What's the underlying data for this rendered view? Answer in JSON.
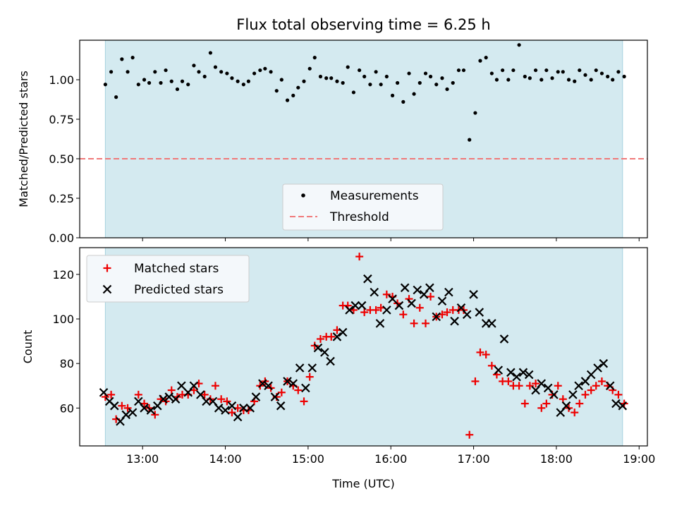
{
  "colors": {
    "span": "#d4eaf0",
    "span_edge": "#a7d1df",
    "threshold": "#f07a7a",
    "matched": "#ee0000",
    "predicted": "#000000",
    "measure": "#000000",
    "legend_bg": "#f4f8fb"
  },
  "chart_data": [
    {
      "type": "scatter",
      "title": "Flux total observing time = 6.25 h",
      "xlabel": "",
      "ylabel": "Matched/Predicted stars",
      "xlim": [
        12.24,
        19.1
      ],
      "ylim": [
        0.0,
        1.25
      ],
      "yticks": [
        0.0,
        0.25,
        0.5,
        0.75,
        1.0
      ],
      "ytick_labels": [
        "0.00",
        "0.25",
        "0.50",
        "0.75",
        "1.00"
      ],
      "xticks": [
        13,
        14,
        15,
        16,
        17,
        18,
        19
      ],
      "shaded_span": [
        12.55,
        18.8
      ],
      "threshold": 0.5,
      "legend": [
        "Measurements",
        "Threshold"
      ],
      "series": [
        {
          "name": "Measurements",
          "x": [
            12.55,
            12.62,
            12.68,
            12.75,
            12.82,
            12.88,
            12.95,
            13.02,
            13.08,
            13.15,
            13.22,
            13.28,
            13.35,
            13.42,
            13.48,
            13.55,
            13.62,
            13.68,
            13.75,
            13.82,
            13.88,
            13.95,
            14.02,
            14.08,
            14.15,
            14.22,
            14.28,
            14.35,
            14.42,
            14.48,
            14.55,
            14.62,
            14.68,
            14.75,
            14.82,
            14.88,
            14.95,
            15.02,
            15.08,
            15.15,
            15.22,
            15.28,
            15.35,
            15.42,
            15.48,
            15.55,
            15.62,
            15.68,
            15.75,
            15.82,
            15.88,
            15.95,
            16.02,
            16.08,
            16.15,
            16.22,
            16.28,
            16.35,
            16.42,
            16.48,
            16.55,
            16.62,
            16.68,
            16.75,
            16.82,
            16.88,
            16.95,
            17.02,
            17.08,
            17.15,
            17.22,
            17.28,
            17.35,
            17.42,
            17.48,
            17.55,
            17.62,
            17.68,
            17.75,
            17.82,
            17.88,
            17.95,
            18.02,
            18.08,
            18.15,
            18.22,
            18.28,
            18.35,
            18.42,
            18.48,
            18.55,
            18.62,
            18.68,
            18.75,
            18.82
          ],
          "y": [
            0.97,
            1.05,
            0.89,
            1.13,
            1.05,
            1.14,
            0.97,
            1.0,
            0.98,
            1.05,
            0.98,
            1.06,
            0.99,
            0.94,
            0.99,
            0.97,
            1.09,
            1.05,
            1.02,
            1.17,
            1.08,
            1.05,
            1.04,
            1.01,
            0.99,
            0.97,
            0.99,
            1.04,
            1.06,
            1.07,
            1.05,
            0.93,
            1.0,
            0.87,
            0.9,
            0.95,
            0.99,
            1.07,
            1.14,
            1.02,
            1.01,
            1.01,
            0.99,
            0.98,
            1.08,
            0.92,
            1.06,
            1.02,
            0.97,
            1.05,
            0.97,
            1.02,
            0.9,
            0.98,
            0.86,
            1.04,
            0.91,
            0.98,
            1.04,
            1.02,
            0.97,
            1.01,
            0.94,
            0.98,
            1.06,
            1.06,
            0.62,
            0.79,
            1.12,
            1.14,
            1.04,
            1.0,
            1.06,
            1.0,
            1.06,
            1.22,
            1.02,
            1.01,
            1.06,
            1.0,
            1.06,
            1.01,
            1.05,
            1.05,
            1.0,
            0.99,
            1.06,
            1.03,
            1.0,
            1.06,
            1.04,
            1.02,
            1.0,
            1.05,
            1.02
          ]
        }
      ]
    },
    {
      "type": "scatter",
      "title": "",
      "xlabel": "Time (UTC)",
      "ylabel": "Count",
      "xlim": [
        12.24,
        19.1
      ],
      "ylim": [
        43,
        132
      ],
      "yticks": [
        60,
        80,
        100,
        120
      ],
      "ytick_labels": [
        "60",
        "80",
        "100",
        "120"
      ],
      "xticks": [
        13,
        14,
        15,
        16,
        17,
        18,
        19
      ],
      "xtick_labels": [
        "13:00",
        "14:00",
        "15:00",
        "16:00",
        "17:00",
        "18:00",
        "19:00"
      ],
      "shaded_span": [
        12.55,
        18.8
      ],
      "legend": [
        "Matched stars",
        "Predicted stars"
      ],
      "series": [
        {
          "name": "Matched stars",
          "x": [
            12.55,
            12.62,
            12.68,
            12.75,
            12.82,
            12.95,
            13.02,
            13.08,
            13.15,
            13.22,
            13.28,
            13.35,
            13.42,
            13.48,
            13.55,
            13.62,
            13.68,
            13.75,
            13.82,
            13.88,
            13.95,
            14.02,
            14.08,
            14.15,
            14.22,
            14.28,
            14.35,
            14.42,
            14.48,
            14.55,
            14.62,
            14.68,
            14.75,
            14.82,
            14.88,
            14.95,
            15.02,
            15.08,
            15.15,
            15.22,
            15.28,
            15.35,
            15.42,
            15.48,
            15.55,
            15.62,
            15.68,
            15.75,
            15.82,
            15.88,
            15.95,
            16.02,
            16.08,
            16.15,
            16.22,
            16.28,
            16.35,
            16.42,
            16.48,
            16.55,
            16.62,
            16.68,
            16.75,
            16.82,
            16.88,
            16.95,
            17.02,
            17.08,
            17.15,
            17.22,
            17.28,
            17.35,
            17.42,
            17.48,
            17.55,
            17.62,
            17.68,
            17.75,
            17.82,
            17.88,
            17.95,
            18.02,
            18.08,
            18.15,
            18.22,
            18.28,
            18.35,
            18.42,
            18.48,
            18.55,
            18.62,
            18.68,
            18.75,
            18.82
          ],
          "y": [
            65,
            66,
            55,
            61,
            60,
            66,
            62,
            60,
            57,
            64,
            63,
            68,
            65,
            66,
            66,
            68,
            71,
            66,
            64,
            70,
            64,
            63,
            58,
            60,
            59,
            59,
            63,
            70,
            72,
            69,
            65,
            67,
            72,
            70,
            68,
            63,
            74,
            88,
            91,
            92,
            92,
            95,
            106,
            106,
            104,
            128,
            103,
            104,
            104,
            105,
            111,
            110,
            107,
            102,
            109,
            98,
            105,
            98,
            110,
            101,
            102,
            103,
            104,
            104,
            104,
            48,
            72,
            85,
            84,
            79,
            75,
            72,
            72,
            70,
            70,
            62,
            70,
            71,
            60,
            62,
            66,
            70,
            64,
            60,
            58,
            62,
            66,
            68,
            70,
            72,
            70,
            68,
            66,
            62
          ],
          "x_override": null
        },
        {
          "name": "Predicted stars",
          "x": [
            12.53,
            12.6,
            12.66,
            12.73,
            12.8,
            12.88,
            12.95,
            13.02,
            13.1,
            13.18,
            13.25,
            13.32,
            13.4,
            13.47,
            13.55,
            13.62,
            13.7,
            13.77,
            13.85,
            13.92,
            14.0,
            14.08,
            14.15,
            14.22,
            14.3,
            14.37,
            14.45,
            14.52,
            14.6,
            14.67,
            14.75,
            14.82,
            14.9,
            14.97,
            15.05,
            15.12,
            15.2,
            15.27,
            15.35,
            15.42,
            15.5,
            15.57,
            15.65,
            15.72,
            15.8,
            15.87,
            15.95,
            16.02,
            16.1,
            16.17,
            16.25,
            16.32,
            16.4,
            16.47,
            16.55,
            16.62,
            16.7,
            16.77,
            16.85,
            16.92,
            17.0,
            17.07,
            17.15,
            17.22,
            17.3,
            17.37,
            17.45,
            17.52,
            17.6,
            17.67,
            17.75,
            17.82,
            17.9,
            17.97,
            18.05,
            18.12,
            18.2,
            18.27,
            18.35,
            18.42,
            18.5,
            18.57,
            18.65,
            18.72,
            18.8
          ],
          "y": [
            67,
            63,
            61,
            54,
            57,
            58,
            63,
            60,
            59,
            61,
            64,
            65,
            64,
            70,
            67,
            70,
            66,
            63,
            63,
            60,
            59,
            61,
            56,
            60,
            60,
            65,
            71,
            70,
            65,
            61,
            72,
            71,
            78,
            69,
            78,
            87,
            85,
            81,
            92,
            94,
            104,
            106,
            106,
            118,
            112,
            98,
            104,
            109,
            106,
            114,
            107,
            113,
            111,
            114,
            101,
            108,
            112,
            99,
            105,
            102,
            111,
            103,
            98,
            98,
            77,
            91,
            76,
            74,
            76,
            75,
            68,
            71,
            69,
            66,
            58,
            61,
            66,
            70,
            72,
            75,
            78,
            80,
            70,
            62,
            61
          ]
        }
      ]
    }
  ]
}
